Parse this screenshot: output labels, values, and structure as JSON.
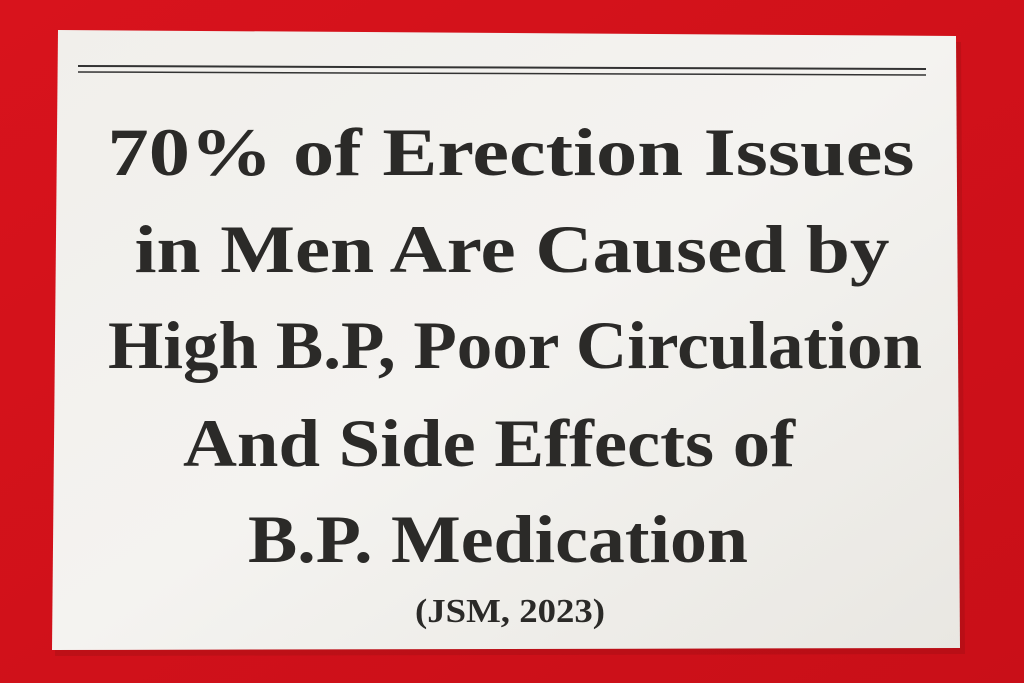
{
  "headline": {
    "lines": [
      "70% of Erection Issues",
      "in Men Are Caused by",
      "High B.P, Poor Circulation",
      "And Side Effects of",
      "B.P. Medication"
    ]
  },
  "source": "(JSM, 2023)"
}
